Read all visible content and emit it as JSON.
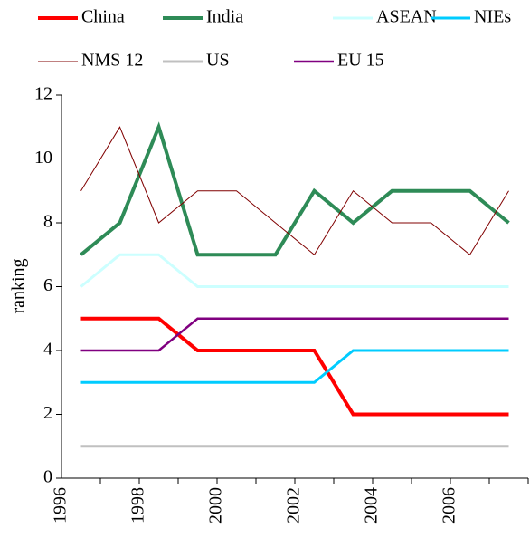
{
  "chart_data": {
    "type": "line",
    "y_label": "ranking",
    "categories": [
      "1996",
      null,
      "1998",
      null,
      "2000",
      null,
      "2002",
      null,
      "2004",
      null,
      "2006",
      null
    ],
    "series": [
      {
        "name": "China",
        "color": "#ff0000",
        "values": [
          5,
          5,
          5,
          4,
          4,
          4,
          4,
          2,
          2,
          2,
          2,
          2
        ]
      },
      {
        "name": "India",
        "color": "#2e8b57",
        "values": [
          7,
          8,
          11,
          7,
          7,
          7,
          9,
          8,
          9,
          9,
          9,
          8
        ]
      },
      {
        "name": "ASEAN",
        "color": "#ccffff",
        "values": [
          6,
          7,
          7,
          6,
          6,
          6,
          6,
          6,
          6,
          6,
          6,
          6
        ]
      },
      {
        "name": "NIEs",
        "color": "#00ccff",
        "values": [
          3,
          3,
          3,
          3,
          3,
          3,
          3,
          4,
          4,
          4,
          4,
          4
        ]
      },
      {
        "name": "NMS 12",
        "color": "#800000",
        "values": [
          9,
          11,
          8,
          9,
          9,
          8,
          7,
          9,
          8,
          8,
          7,
          9
        ]
      },
      {
        "name": "US",
        "color": "#c0c0c0",
        "values": [
          1,
          1,
          1,
          1,
          1,
          1,
          1,
          1,
          1,
          1,
          1,
          1
        ]
      },
      {
        "name": "EU 15",
        "color": "#800080",
        "values": [
          4,
          4,
          4,
          5,
          5,
          5,
          5,
          5,
          5,
          5,
          5,
          5
        ]
      }
    ],
    "ylim": [
      0,
      12
    ],
    "yticks": [
      0,
      2,
      4,
      6,
      8,
      10,
      12
    ],
    "grid": false
  }
}
